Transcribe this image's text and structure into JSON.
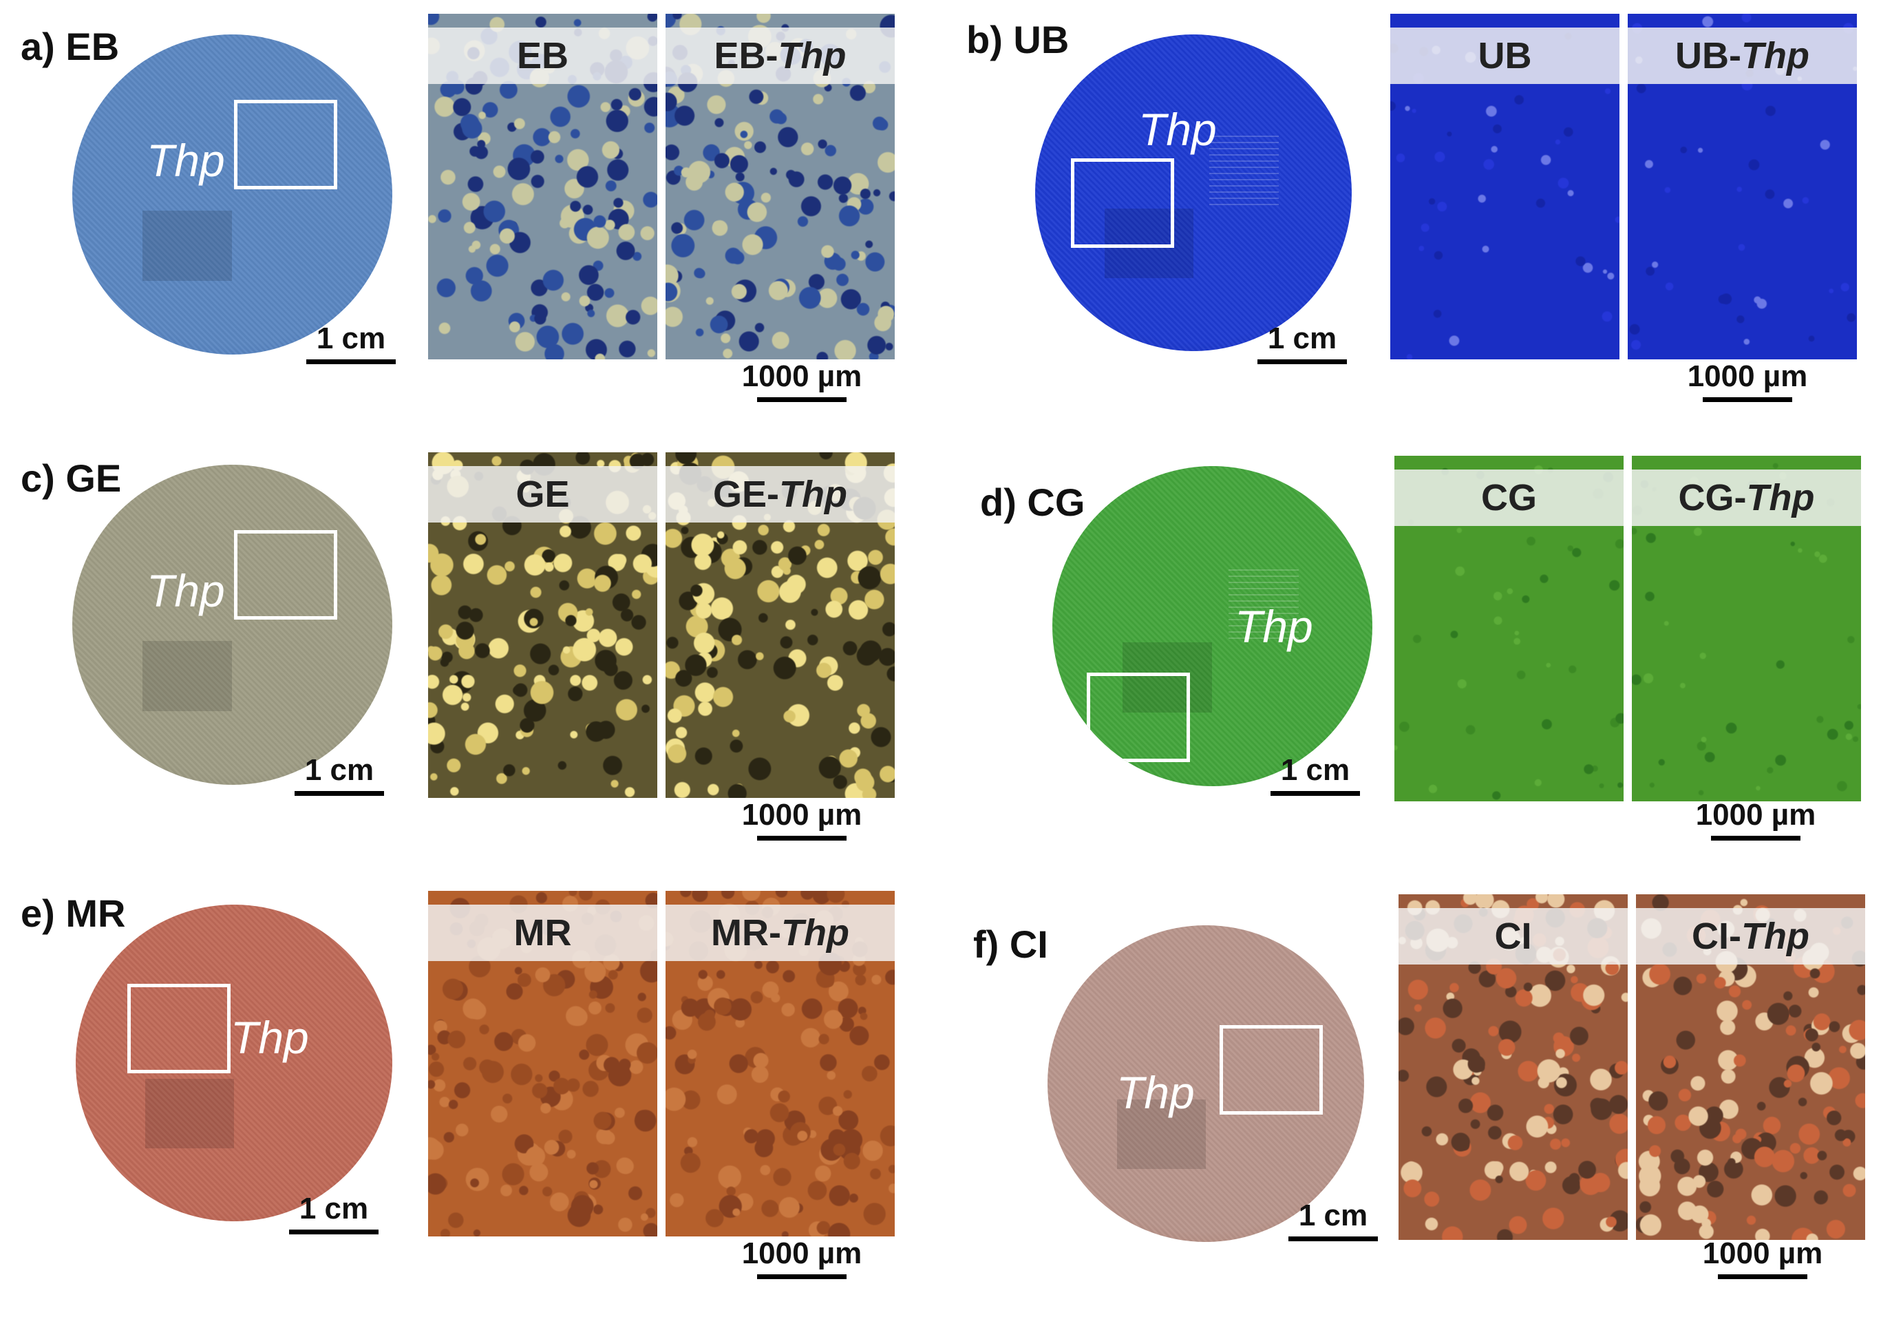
{
  "panels": [
    {
      "id": "a",
      "label": "a) EB",
      "overlay": "Thp",
      "disc_scale": "1 cm",
      "micro_scale": "1000 µm",
      "micro_left": "EB",
      "micro_right_prefix": "EB-",
      "micro_right_italic": "Thp",
      "colors": {
        "disc": "#5b87c2",
        "disc_edge": "#3e6fb2",
        "micro_base": "#7f93a3",
        "micro_a": "#2d4f9e",
        "micro_b": "#c7c79f",
        "micro_c": "#1c2f78"
      }
    },
    {
      "id": "b",
      "label": "b) UB",
      "overlay": "Thp",
      "disc_scale": "1 cm",
      "micro_scale": "1000 µm",
      "micro_left": "UB",
      "micro_right_prefix": "UB-",
      "micro_right_italic": "Thp",
      "colors": {
        "disc": "#1e3bd2",
        "disc_edge": "#1528a8",
        "micro_base": "#1a2ec4",
        "micro_a": "#2536d8",
        "micro_b": "#6b78e6",
        "micro_c": "#1424a8"
      }
    },
    {
      "id": "c",
      "label": "c) GE",
      "overlay": "Thp",
      "disc_scale": "1 cm",
      "micro_scale": "1000 µm",
      "micro_left": "GE",
      "micro_right_prefix": "GE-",
      "micro_right_italic": "Thp",
      "colors": {
        "disc": "#9f9d85",
        "disc_edge": "#85836d",
        "micro_base": "#5e5630",
        "micro_a": "#d8c46a",
        "micro_b": "#2a2614",
        "micro_c": "#f0e08c"
      }
    },
    {
      "id": "d",
      "label": "d) CG",
      "overlay": "Thp",
      "disc_scale": "1 cm",
      "micro_scale": "1000 µm",
      "micro_left": "CG",
      "micro_right_prefix": "CG-",
      "micro_right_italic": "Thp",
      "colors": {
        "disc": "#44a63c",
        "disc_edge": "#2f8a2c",
        "micro_base": "#4a9a2c",
        "micro_a": "#3c8a24",
        "micro_b": "#5cac38",
        "micro_c": "#2f7a20"
      }
    },
    {
      "id": "e",
      "label": "e) MR",
      "overlay": "Thp",
      "disc_scale": "1 cm",
      "micro_scale": "1000 µm",
      "micro_left": "MR",
      "micro_right_prefix": "MR-",
      "micro_right_italic": "Thp",
      "colors": {
        "disc": "#c06a58",
        "disc_edge": "#a85444",
        "micro_base": "#b5602c",
        "micro_a": "#9a4c22",
        "micro_b": "#c97840",
        "micro_c": "#874020"
      }
    },
    {
      "id": "f",
      "label": "f) CI",
      "overlay": "Thp",
      "disc_scale": "1 cm",
      "micro_scale": "1000 µm",
      "micro_left": "CI",
      "micro_right_prefix": "CI-",
      "micro_right_italic": "Thp",
      "colors": {
        "disc": "#b9968c",
        "disc_edge": "#a36a5c",
        "micro_base": "#9a5a3c",
        "micro_a": "#c8643c",
        "micro_b": "#e8c8a0",
        "micro_c": "#5a3828"
      }
    }
  ]
}
